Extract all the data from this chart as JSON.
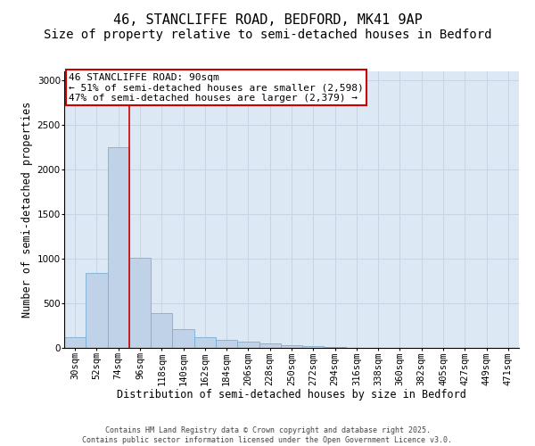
{
  "title_line1": "46, STANCLIFFE ROAD, BEDFORD, MK41 9AP",
  "title_line2": "Size of property relative to semi-detached houses in Bedford",
  "xlabel": "Distribution of semi-detached houses by size in Bedford",
  "ylabel": "Number of semi-detached properties",
  "annotation_title": "46 STANCLIFFE ROAD: 90sqm",
  "annotation_line2": "← 51% of semi-detached houses are smaller (2,598)",
  "annotation_line3": "47% of semi-detached houses are larger (2,379) →",
  "footer_line1": "Contains HM Land Registry data © Crown copyright and database right 2025.",
  "footer_line2": "Contains public sector information licensed under the Open Government Licence v3.0.",
  "categories": [
    "30sqm",
    "52sqm",
    "74sqm",
    "96sqm",
    "118sqm",
    "140sqm",
    "162sqm",
    "184sqm",
    "206sqm",
    "228sqm",
    "250sqm",
    "272sqm",
    "294sqm",
    "316sqm",
    "338sqm",
    "360sqm",
    "382sqm",
    "405sqm",
    "427sqm",
    "449sqm",
    "471sqm"
  ],
  "values": [
    120,
    840,
    2250,
    1010,
    390,
    215,
    120,
    90,
    70,
    55,
    35,
    25,
    10,
    5,
    3,
    2,
    2,
    1,
    1,
    0,
    0
  ],
  "bar_color": "#bfd2e8",
  "bar_edge_color": "#7aafd4",
  "vline_color": "#cc0000",
  "vline_position": 2.5,
  "annotation_box_color": "#cc0000",
  "ylim": [
    0,
    3100
  ],
  "yticks": [
    0,
    500,
    1000,
    1500,
    2000,
    2500,
    3000
  ],
  "grid_color": "#c8d4e4",
  "background_color": "#dce8f4",
  "title_fontsize": 11,
  "subtitle_fontsize": 10,
  "axis_label_fontsize": 8.5,
  "tick_fontsize": 7.5,
  "annotation_fontsize": 8,
  "footer_fontsize": 6
}
